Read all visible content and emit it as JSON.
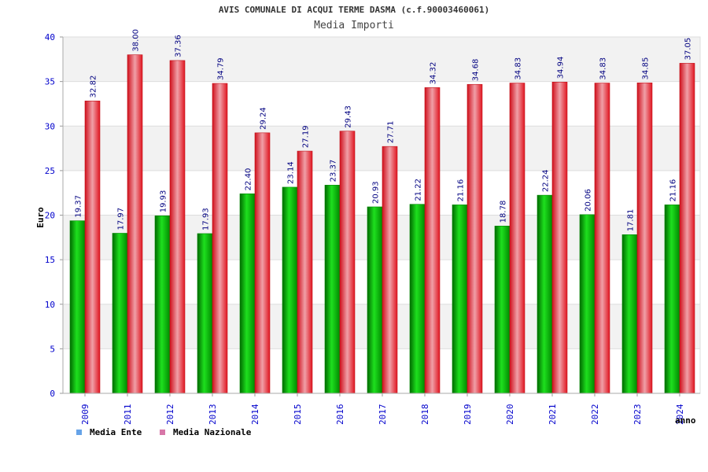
{
  "chart_data": {
    "type": "bar",
    "title": "AVIS COMUNALE DI ACQUI TERME DASMA (c.f.90003460061)",
    "subtitle": "Media Importi",
    "xlabel": "anno",
    "ylabel": "Euro",
    "ylim": [
      0,
      40
    ],
    "yticks": [
      0,
      5,
      10,
      15,
      20,
      25,
      30,
      35,
      40
    ],
    "categories": [
      "2009",
      "2011",
      "2012",
      "2013",
      "2014",
      "2015",
      "2016",
      "2017",
      "2018",
      "2019",
      "2020",
      "2021",
      "2022",
      "2023",
      "2024"
    ],
    "series": [
      {
        "name": "Media Ente",
        "color": "#00b400",
        "legend_color": "#66a3e8",
        "values": [
          19.37,
          17.97,
          19.93,
          17.93,
          22.4,
          23.14,
          23.37,
          20.93,
          21.22,
          21.16,
          18.78,
          22.24,
          20.06,
          17.81,
          21.16
        ],
        "labels": [
          "19.37",
          "17.97",
          "19.93",
          "17.93",
          "22.40",
          "23.14",
          "23.37",
          "20.93",
          "21.22",
          "21.16",
          "18.78",
          "22.24",
          "20.06",
          "17.81",
          "21.16"
        ]
      },
      {
        "name": "Media Nazionale",
        "color": "#e8202a",
        "legend_color": "#d777a8",
        "values": [
          32.82,
          38.0,
          37.36,
          34.79,
          29.24,
          27.19,
          29.43,
          27.71,
          34.32,
          34.68,
          34.83,
          34.94,
          34.83,
          34.85,
          37.05
        ],
        "labels": [
          "32.82",
          "38.00",
          "37.36",
          "34.79",
          "29.24",
          "27.19",
          "29.43",
          "27.71",
          "34.32",
          "34.68",
          "34.83",
          "34.94",
          "34.83",
          "34.85",
          "37.05"
        ]
      }
    ]
  }
}
